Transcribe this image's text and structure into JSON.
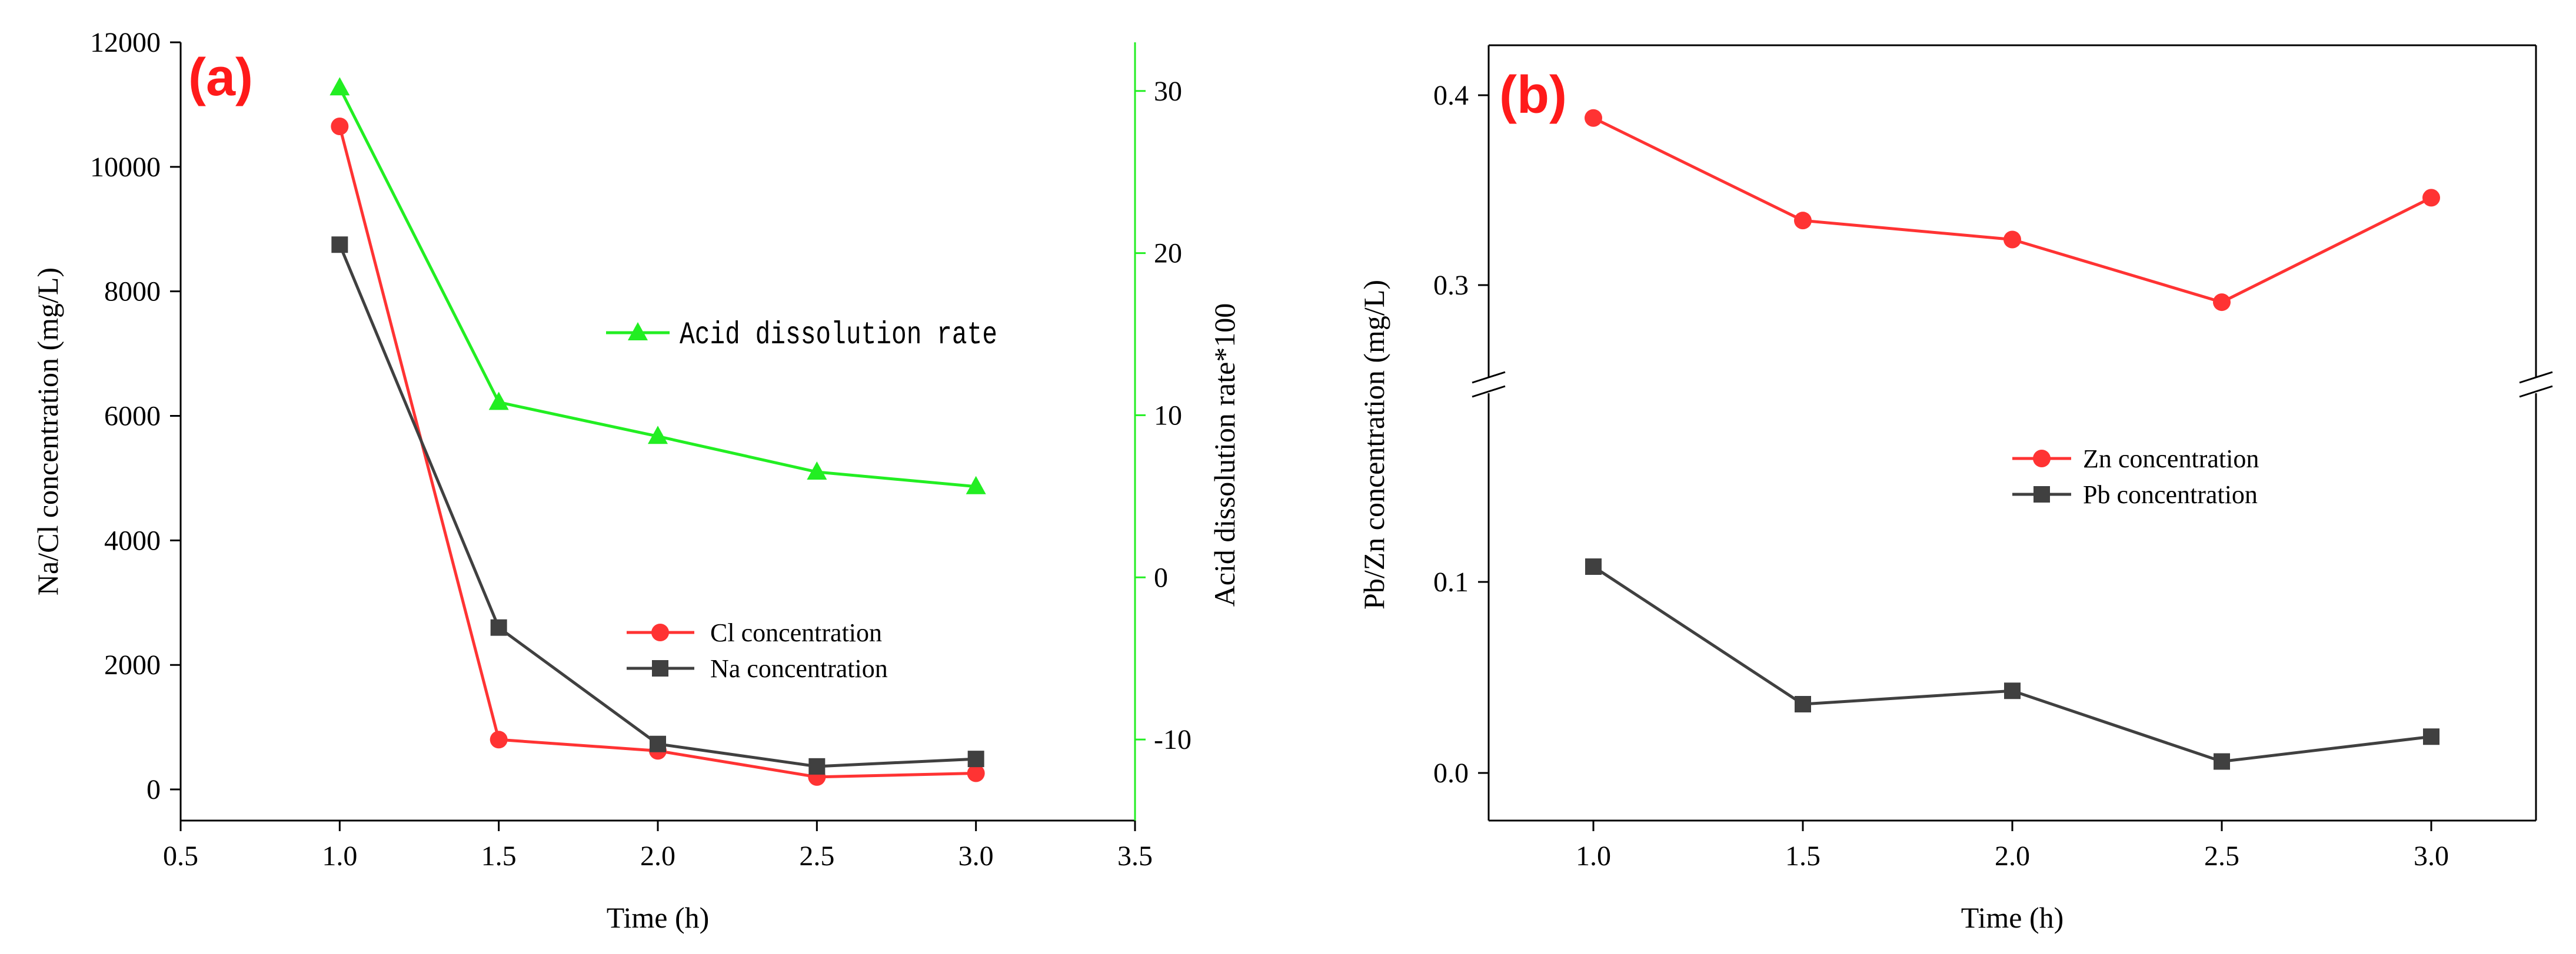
{
  "chart_data": [
    {
      "panel_label": "(a)",
      "type": "line",
      "xlabel": "Time (h)",
      "ylabel": "Na/Cl concentration (mg/L)",
      "y2label": "Acid dissolution rate*100",
      "xlim": [
        0.5,
        3.5
      ],
      "ylim": [
        -500,
        12000
      ],
      "y2lim": [
        -15,
        33
      ],
      "xticks": [
        0.5,
        1.0,
        1.5,
        2.0,
        2.5,
        3.0,
        3.5
      ],
      "xtick_labels": [
        "0.5",
        "1.0",
        "1.5",
        "2.0",
        "2.5",
        "3.0",
        "3.5"
      ],
      "yticks": [
        0,
        2000,
        4000,
        6000,
        8000,
        10000,
        12000
      ],
      "ytick_labels": [
        "0",
        "2000",
        "4000",
        "6000",
        "8000",
        "10000",
        "12000"
      ],
      "y2ticks": [
        -10,
        0,
        10,
        20,
        30
      ],
      "y2tick_labels": [
        "-10",
        "0",
        "10",
        "20",
        "30"
      ],
      "x": [
        1.0,
        1.5,
        2.0,
        2.5,
        3.0
      ],
      "series": [
        {
          "name": "Cl concentration",
          "axis": "left",
          "marker": "circle",
          "color": "#ff3333",
          "values": [
            10650,
            800,
            620,
            200,
            260
          ]
        },
        {
          "name": "Na concentration",
          "axis": "left",
          "marker": "square",
          "color": "#404040",
          "values": [
            8750,
            2600,
            730,
            370,
            490
          ]
        },
        {
          "name": "Acid dissolution rate",
          "axis": "right",
          "marker": "triangle",
          "color": "#22ee22",
          "values": [
            30.2,
            10.8,
            8.7,
            6.5,
            5.6
          ]
        }
      ],
      "y2_axis_color": "#22ee22"
    },
    {
      "panel_label": "(b)",
      "type": "line",
      "xlabel": "Time (h)",
      "ylabel": "Pb/Zn concentration (mg/L)",
      "xlim": [
        0.75,
        3.25
      ],
      "ylim": [
        -0.025,
        0.425
      ],
      "axis_break": [
        0.14,
        0.26
      ],
      "xticks": [
        1.0,
        1.5,
        2.0,
        2.5,
        3.0
      ],
      "xtick_labels": [
        "1.0",
        "1.5",
        "2.0",
        "2.5",
        "3.0"
      ],
      "yticks": [
        0.0,
        0.1,
        0.3,
        0.4
      ],
      "ytick_labels": [
        "0.0",
        "0.1",
        "0.3",
        "0.4"
      ],
      "x": [
        1.0,
        1.5,
        2.0,
        2.5,
        3.0
      ],
      "series": [
        {
          "name": "Zn concentration",
          "marker": "circle",
          "color": "#ff3333",
          "values": [
            0.388,
            0.334,
            0.324,
            0.291,
            0.346
          ]
        },
        {
          "name": "Pb concentration",
          "marker": "square",
          "color": "#404040",
          "values": [
            0.108,
            0.036,
            0.043,
            0.006,
            0.019
          ]
        }
      ]
    }
  ]
}
